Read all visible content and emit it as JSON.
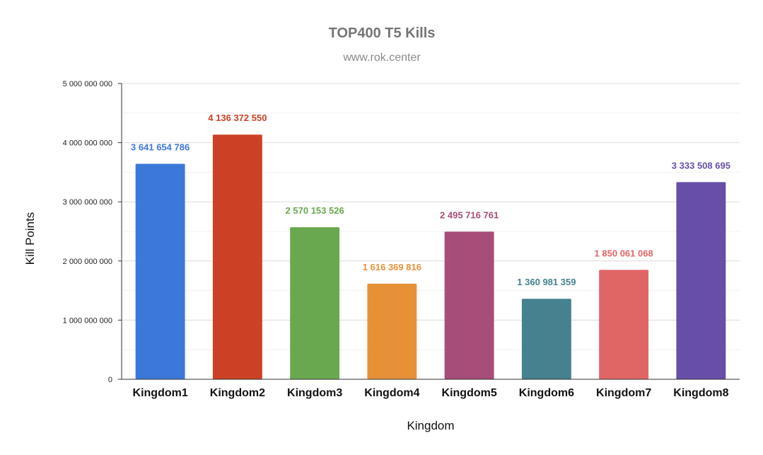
{
  "chart_data": {
    "type": "bar",
    "title": "TOP400 T5 Kills",
    "subtitle": "www.rok.center",
    "xlabel": "Kingdom",
    "ylabel": "Kill Points",
    "ylim": [
      0,
      5000000000
    ],
    "yticks": [
      0,
      1000000000,
      2000000000,
      3000000000,
      4000000000,
      5000000000
    ],
    "ytick_labels": [
      "0",
      "1 000 000 000",
      "2 000 000 000",
      "3 000 000 000",
      "4 000 000 000",
      "5 000 000 000"
    ],
    "grid": true,
    "categories": [
      "Kingdom1",
      "Kingdom2",
      "Kingdom3",
      "Kingdom4",
      "Kingdom5",
      "Kingdom6",
      "Kingdom7",
      "Kingdom8"
    ],
    "values": [
      3641654786,
      4136372550,
      2570153526,
      1616369816,
      2495716761,
      1360981359,
      1850061068,
      3333508695
    ],
    "data_labels": [
      "3 641 654 786",
      "4 136 372 550",
      "2 570 153 526",
      "1 616 369 816",
      "2 495 716 761",
      "1 360 981 359",
      "1 850 061 068",
      "3 333 508 695"
    ],
    "colors": [
      "#3c78d8",
      "#cc4125",
      "#6aa84f",
      "#e69138",
      "#a64d79",
      "#45818e",
      "#e06666",
      "#674ea7"
    ]
  }
}
